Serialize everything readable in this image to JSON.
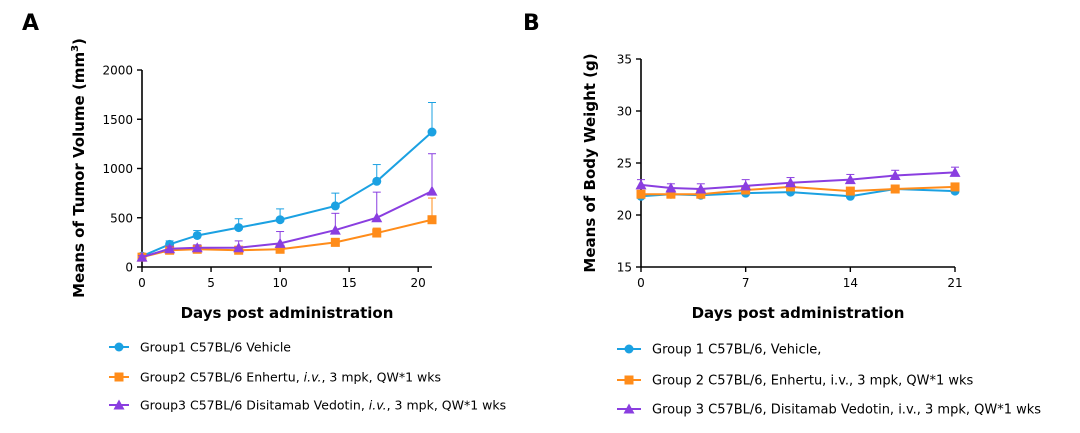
{
  "colors": {
    "blue": "#1ba1e2",
    "orange": "#ff8c1a",
    "purple": "#8a3ee0"
  },
  "chart_data": [
    {
      "panel": "A",
      "type": "line",
      "xlabel": "Days post administration",
      "ylabel_main": "Means of Tumor Volume (mm",
      "ylabel_sup": "3",
      "ylabel_end": ")",
      "xlim": [
        0,
        21
      ],
      "ylim": [
        0,
        2000
      ],
      "xticks": [
        0,
        5,
        10,
        15,
        20
      ],
      "yticks": [
        0,
        500,
        1000,
        1500,
        2000
      ],
      "x": [
        0,
        2,
        4,
        7,
        10,
        14,
        17,
        21
      ],
      "series": [
        {
          "name": "Group1 C57BL/6 Vehicle",
          "legend": [
            "Group1 C57BL/6 Vehicle"
          ],
          "color": "#1ba1e2",
          "marker": "circle",
          "values": [
            110,
            230,
            320,
            400,
            480,
            620,
            870,
            1370
          ],
          "errors": [
            20,
            35,
            50,
            90,
            110,
            130,
            170,
            300
          ]
        },
        {
          "name": "Group2 C57BL/6 Enhertu, i.v., 3 mpk, QW*1 wks",
          "legend": [
            "Group2 C57BL/6 Enhertu, ",
            "i.v.",
            ", 3 mpk, QW*1 wks"
          ],
          "color": "#ff8c1a",
          "marker": "square",
          "values": [
            100,
            170,
            180,
            170,
            180,
            250,
            345,
            480
          ],
          "errors": [
            10,
            20,
            25,
            40,
            30,
            40,
            50,
            220
          ]
        },
        {
          "name": "Group3 C57BL/6 Disitamab Vedotin, i.v., 3 mpk, QW*1 wks",
          "legend": [
            "Group3 C57BL/6 Disitamab Vedotin, ",
            "i.v.",
            ", 3 mpk, QW*1 wks"
          ],
          "color": "#8a3ee0",
          "marker": "triangle",
          "values": [
            100,
            185,
            195,
            195,
            240,
            375,
            500,
            770
          ],
          "errors": [
            15,
            25,
            30,
            70,
            120,
            170,
            260,
            380
          ]
        }
      ]
    },
    {
      "panel": "B",
      "type": "line",
      "xlabel": "Days post administration",
      "ylabel": "Means of Body Weight (g)",
      "xlim": [
        0,
        21
      ],
      "ylim": [
        15,
        35
      ],
      "xticks": [
        0,
        7,
        14,
        21
      ],
      "yticks": [
        15,
        20,
        25,
        30,
        35
      ],
      "x": [
        0,
        2,
        4,
        7,
        10,
        14,
        17,
        21
      ],
      "series": [
        {
          "name": "Group 1 C57BL/6, Vehicle,",
          "color": "#1ba1e2",
          "marker": "circle",
          "values": [
            21.8,
            22.0,
            21.9,
            22.1,
            22.2,
            21.8,
            22.5,
            22.3
          ],
          "errors": [
            0.3,
            0.3,
            0.3,
            0.3,
            0.3,
            0.3,
            0.3,
            0.3
          ]
        },
        {
          "name": "Group 2 C57BL/6, Enhertu, i.v., 3 mpk, QW*1 wks",
          "color": "#ff8c1a",
          "marker": "square",
          "values": [
            22.0,
            22.0,
            22.0,
            22.4,
            22.7,
            22.3,
            22.5,
            22.7
          ],
          "errors": [
            0.3,
            0.3,
            0.3,
            0.3,
            0.3,
            0.3,
            0.3,
            0.3
          ]
        },
        {
          "name": "Group 3 C57BL/6, Disitamab Vedotin, i.v., 3 mpk, QW*1 wks",
          "color": "#8a3ee0",
          "marker": "triangle",
          "values": [
            22.9,
            22.6,
            22.5,
            22.8,
            23.1,
            23.4,
            23.8,
            24.1
          ],
          "errors": [
            0.5,
            0.4,
            0.5,
            0.6,
            0.5,
            0.5,
            0.5,
            0.5
          ]
        }
      ]
    }
  ]
}
